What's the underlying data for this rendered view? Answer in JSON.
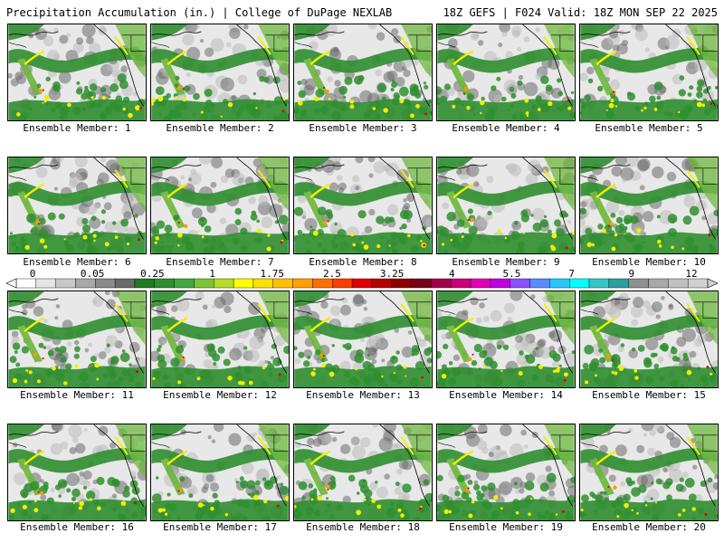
{
  "header": {
    "title": "Precipitation Accumulation (in.) | College of DuPage NEXLAB",
    "run_info": "18Z GEFS | F024 Valid: 18Z MON SEP 22 2025"
  },
  "caption_prefix": "Ensemble Member:",
  "members": [
    "1",
    "2",
    "3",
    "4",
    "5",
    "6",
    "7",
    "8",
    "9",
    "10",
    "11",
    "12",
    "13",
    "14",
    "15",
    "16",
    "17",
    "18",
    "19",
    "20"
  ],
  "colorbar": {
    "labels": [
      "0",
      "0.05",
      "0.25",
      "1",
      "1.75",
      "2.5",
      "3.25",
      "4",
      "5.5",
      "7",
      "9",
      "12"
    ],
    "colors": [
      "#ffffff",
      "#e6e6e6",
      "#c8c8c8",
      "#a8a8a8",
      "#8a8a8a",
      "#6a6a6a",
      "#1f7a1f",
      "#2f8f2f",
      "#45a845",
      "#7cc43a",
      "#b4dc28",
      "#ffff00",
      "#ffe000",
      "#ffc000",
      "#ffa000",
      "#ff7000",
      "#ff3c00",
      "#e00000",
      "#b80000",
      "#8c0000",
      "#780018",
      "#a0004a",
      "#c8007a",
      "#e000b4",
      "#c000e0",
      "#8c50ff",
      "#5a8cff",
      "#28c8ff",
      "#00ffff",
      "#32c8c8",
      "#2aa0a0",
      "#909090",
      "#a8a8a8",
      "#c0c0c0",
      "#d0d0d0"
    ]
  },
  "map_colors": {
    "ocean_gray": "#bcbcbc",
    "light_gray": "#e8e8e8",
    "dark_gray": "#6c6c6c",
    "green": "#2f8f2f",
    "light_green": "#6cb83a",
    "yellow": "#f0f000",
    "orange": "#ff9a00",
    "red": "#e00000"
  }
}
